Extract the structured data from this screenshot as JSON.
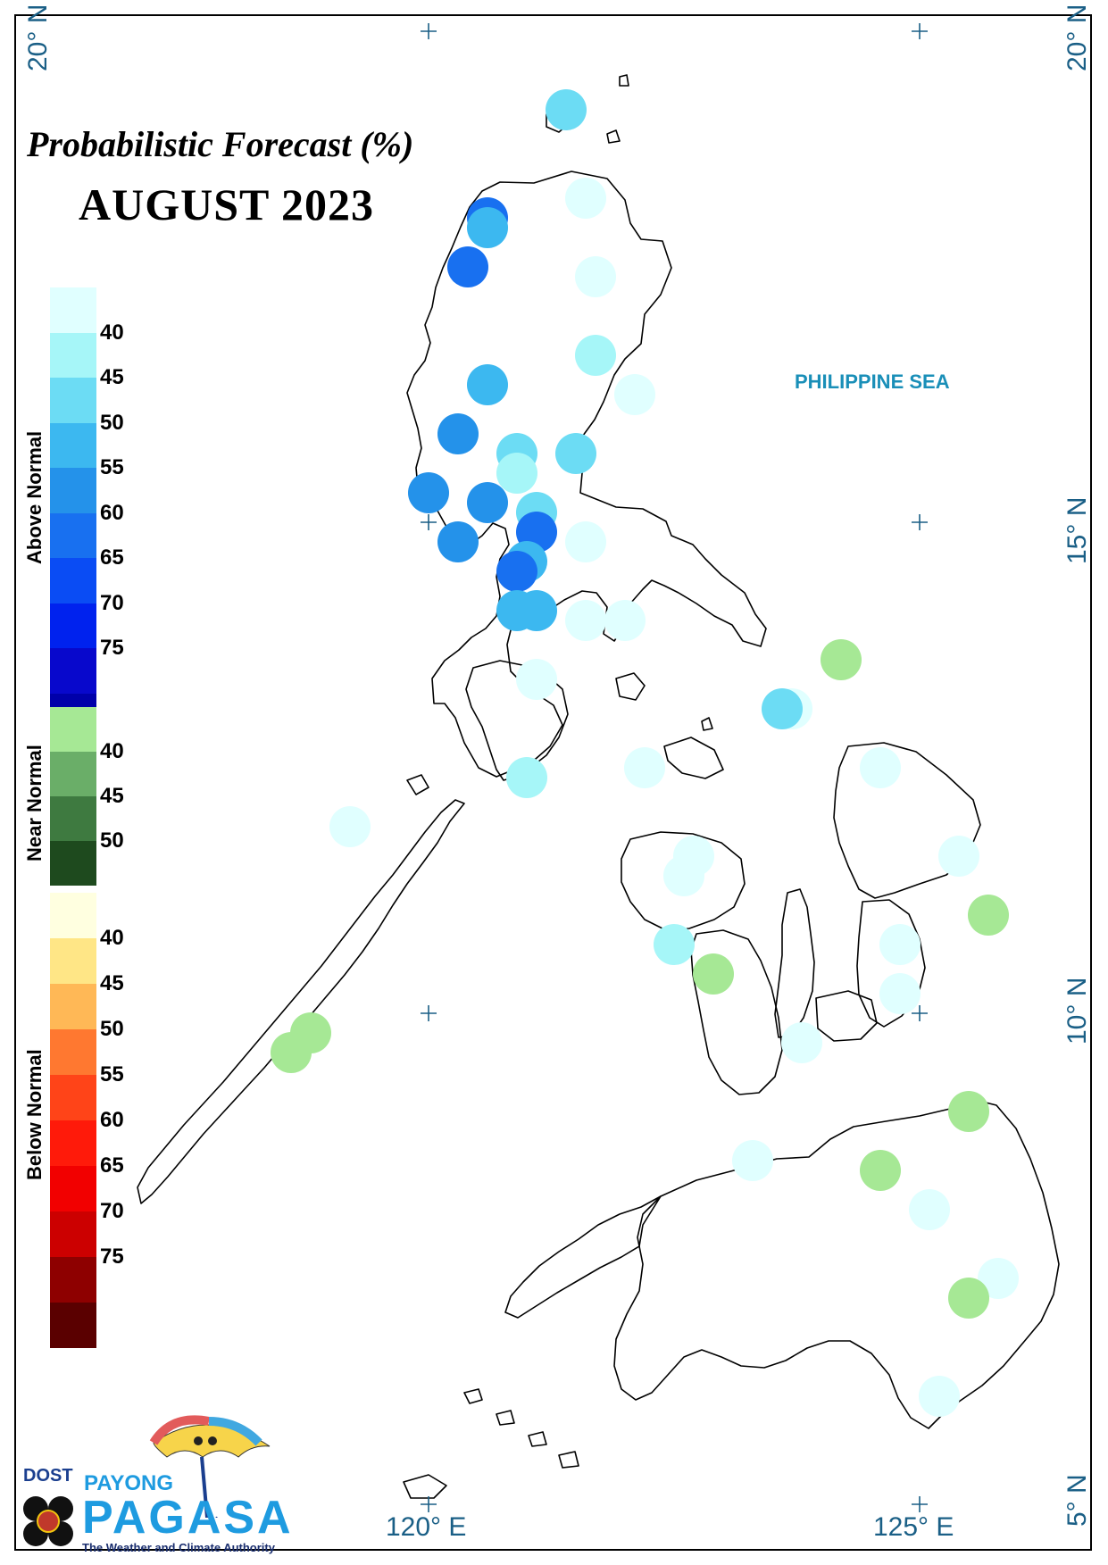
{
  "title": "Probabilistic Forecast (%)",
  "month": "AUGUST 2023",
  "sea_label": "PHILIPPINE SEA",
  "legend": {
    "above": {
      "label": "Above Normal",
      "ticks": [
        "40",
        "45",
        "50",
        "55",
        "60",
        "65",
        "70",
        "75"
      ],
      "colors": [
        "#e0ffff",
        "#a6f6f8",
        "#6cdcf4",
        "#3cb8f0",
        "#2492ea",
        "#1870f0",
        "#0a4cf4",
        "#0022ee",
        "#0808cc",
        "#0000aa"
      ]
    },
    "near": {
      "label": "Near Normal",
      "ticks": [
        "40",
        "45",
        "50"
      ],
      "colors": [
        "#a6e895",
        "#6aae68",
        "#3e7a40",
        "#1e4a1e"
      ]
    },
    "below": {
      "label": "Below Normal",
      "ticks": [
        "40",
        "45",
        "50",
        "55",
        "60",
        "65",
        "70",
        "75"
      ],
      "colors": [
        "#ffffe0",
        "#ffe686",
        "#ffb856",
        "#ff7830",
        "#ff4418",
        "#ff1a0a",
        "#f20000",
        "#cc0000",
        "#8e0000",
        "#5a0000"
      ]
    }
  },
  "coordinates": {
    "lat_20": "20° N",
    "lat_15": "15° N",
    "lat_10": "10° N",
    "lat_5": "5° N",
    "lon_120": "120° E",
    "lon_125": "125° E"
  },
  "stations": [
    {
      "lat": 19.2,
      "lon": 121.4,
      "category": "above",
      "level": "45-50"
    },
    {
      "lat": 18.3,
      "lon": 121.6,
      "category": "above",
      "level": "<40"
    },
    {
      "lat": 18.1,
      "lon": 120.6,
      "category": "above",
      "level": "60-65"
    },
    {
      "lat": 18.0,
      "lon": 120.6,
      "category": "above",
      "level": "50-55"
    },
    {
      "lat": 17.6,
      "lon": 120.4,
      "category": "above",
      "level": "60-65"
    },
    {
      "lat": 17.5,
      "lon": 121.7,
      "category": "above",
      "level": "<40"
    },
    {
      "lat": 16.7,
      "lon": 121.7,
      "category": "above",
      "level": "40-45"
    },
    {
      "lat": 16.4,
      "lon": 120.6,
      "category": "above",
      "level": "50-55"
    },
    {
      "lat": 16.3,
      "lon": 122.1,
      "category": "above",
      "level": "<40"
    },
    {
      "lat": 15.9,
      "lon": 120.3,
      "category": "above",
      "level": "55-60"
    },
    {
      "lat": 15.7,
      "lon": 120.9,
      "category": "above",
      "level": "45-50"
    },
    {
      "lat": 15.7,
      "lon": 121.5,
      "category": "above",
      "level": "45-50"
    },
    {
      "lat": 15.5,
      "lon": 120.9,
      "category": "above",
      "level": "40-45"
    },
    {
      "lat": 15.3,
      "lon": 120.0,
      "category": "above",
      "level": "55-60"
    },
    {
      "lat": 15.2,
      "lon": 120.6,
      "category": "above",
      "level": "55-60"
    },
    {
      "lat": 15.1,
      "lon": 121.1,
      "category": "above",
      "level": "45-50"
    },
    {
      "lat": 14.9,
      "lon": 121.1,
      "category": "above",
      "level": "60-65"
    },
    {
      "lat": 14.8,
      "lon": 121.6,
      "category": "above",
      "level": "<40"
    },
    {
      "lat": 14.8,
      "lon": 120.3,
      "category": "above",
      "level": "55-60"
    },
    {
      "lat": 14.6,
      "lon": 121.0,
      "category": "above",
      "level": "50-55"
    },
    {
      "lat": 14.5,
      "lon": 120.9,
      "category": "above",
      "level": "60-65"
    },
    {
      "lat": 14.1,
      "lon": 121.1,
      "category": "above",
      "level": "50-55"
    },
    {
      "lat": 14.1,
      "lon": 120.9,
      "category": "above",
      "level": "50-55"
    },
    {
      "lat": 14.0,
      "lon": 121.6,
      "category": "above",
      "level": "<40"
    },
    {
      "lat": 14.0,
      "lon": 122.0,
      "category": "above",
      "level": "<40"
    },
    {
      "lat": 13.6,
      "lon": 124.2,
      "category": "near",
      "level": "<40"
    },
    {
      "lat": 13.4,
      "lon": 121.1,
      "category": "above",
      "level": "<40"
    },
    {
      "lat": 13.1,
      "lon": 123.7,
      "category": "above",
      "level": "<40"
    },
    {
      "lat": 13.1,
      "lon": 123.6,
      "category": "above",
      "level": "45-50"
    },
    {
      "lat": 12.5,
      "lon": 122.2,
      "category": "above",
      "level": "<40"
    },
    {
      "lat": 12.5,
      "lon": 124.6,
      "category": "above",
      "level": "<40"
    },
    {
      "lat": 12.4,
      "lon": 121.0,
      "category": "above",
      "level": "40-45"
    },
    {
      "lat": 11.9,
      "lon": 119.2,
      "category": "above",
      "level": "<40"
    },
    {
      "lat": 11.6,
      "lon": 122.7,
      "category": "above",
      "level": "<40"
    },
    {
      "lat": 11.6,
      "lon": 125.4,
      "category": "above",
      "level": "<40"
    },
    {
      "lat": 11.4,
      "lon": 122.6,
      "category": "above",
      "level": "<40"
    },
    {
      "lat": 11.0,
      "lon": 125.7,
      "category": "near",
      "level": "<40"
    },
    {
      "lat": 10.7,
      "lon": 122.5,
      "category": "above",
      "level": "40-45"
    },
    {
      "lat": 10.7,
      "lon": 124.8,
      "category": "above",
      "level": "<40"
    },
    {
      "lat": 10.4,
      "lon": 122.9,
      "category": "near",
      "level": "<40"
    },
    {
      "lat": 10.2,
      "lon": 124.8,
      "category": "above",
      "level": "<40"
    },
    {
      "lat": 9.8,
      "lon": 118.8,
      "category": "near",
      "level": "<40"
    },
    {
      "lat": 9.6,
      "lon": 118.6,
      "category": "near",
      "level": "<40"
    },
    {
      "lat": 9.7,
      "lon": 123.8,
      "category": "above",
      "level": "<40"
    },
    {
      "lat": 9.0,
      "lon": 125.5,
      "category": "near",
      "level": "<40"
    },
    {
      "lat": 8.5,
      "lon": 123.3,
      "category": "above",
      "level": "<40"
    },
    {
      "lat": 8.4,
      "lon": 124.6,
      "category": "near",
      "level": "<40"
    },
    {
      "lat": 8.0,
      "lon": 125.1,
      "category": "above",
      "level": "<40"
    },
    {
      "lat": 7.3,
      "lon": 125.8,
      "category": "above",
      "level": "<40"
    },
    {
      "lat": 7.1,
      "lon": 125.5,
      "category": "near",
      "level": "<40"
    },
    {
      "lat": 6.1,
      "lon": 125.2,
      "category": "above",
      "level": "<40"
    }
  ],
  "logo": {
    "agency": "DOST",
    "brand_top": "PAYONG",
    "brand_main": "PAGASA",
    "tagline": "The Weather and Climate Authority"
  }
}
